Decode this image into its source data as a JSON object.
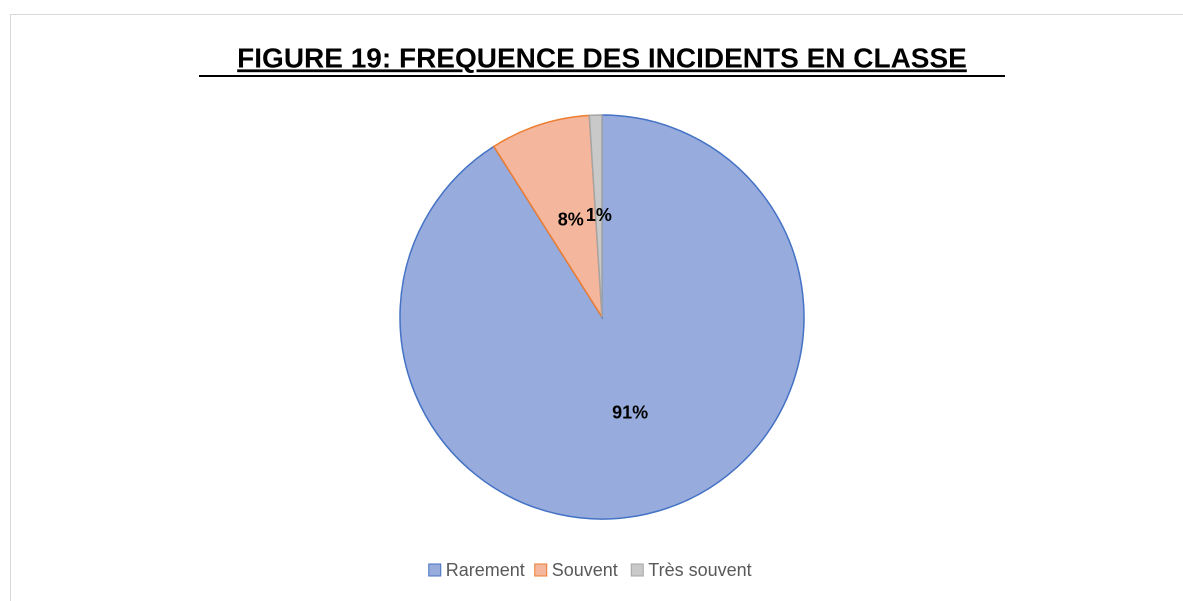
{
  "chart_data": {
    "type": "pie",
    "title": "FIGURE 19: FREQUENCE DES INCIDENTS EN CLASSE",
    "categories": [
      "Rarement",
      "Souvent",
      "Très souvent"
    ],
    "values": [
      91,
      8,
      1
    ],
    "value_labels": [
      "91%",
      "8%",
      "1%"
    ],
    "colors": [
      "#97abdd",
      "#f4b69c",
      "#c9c9c9"
    ],
    "edge_colors": [
      "#4472c4",
      "#ed7d31",
      "#a5a5a5"
    ],
    "legend": "bottom"
  }
}
